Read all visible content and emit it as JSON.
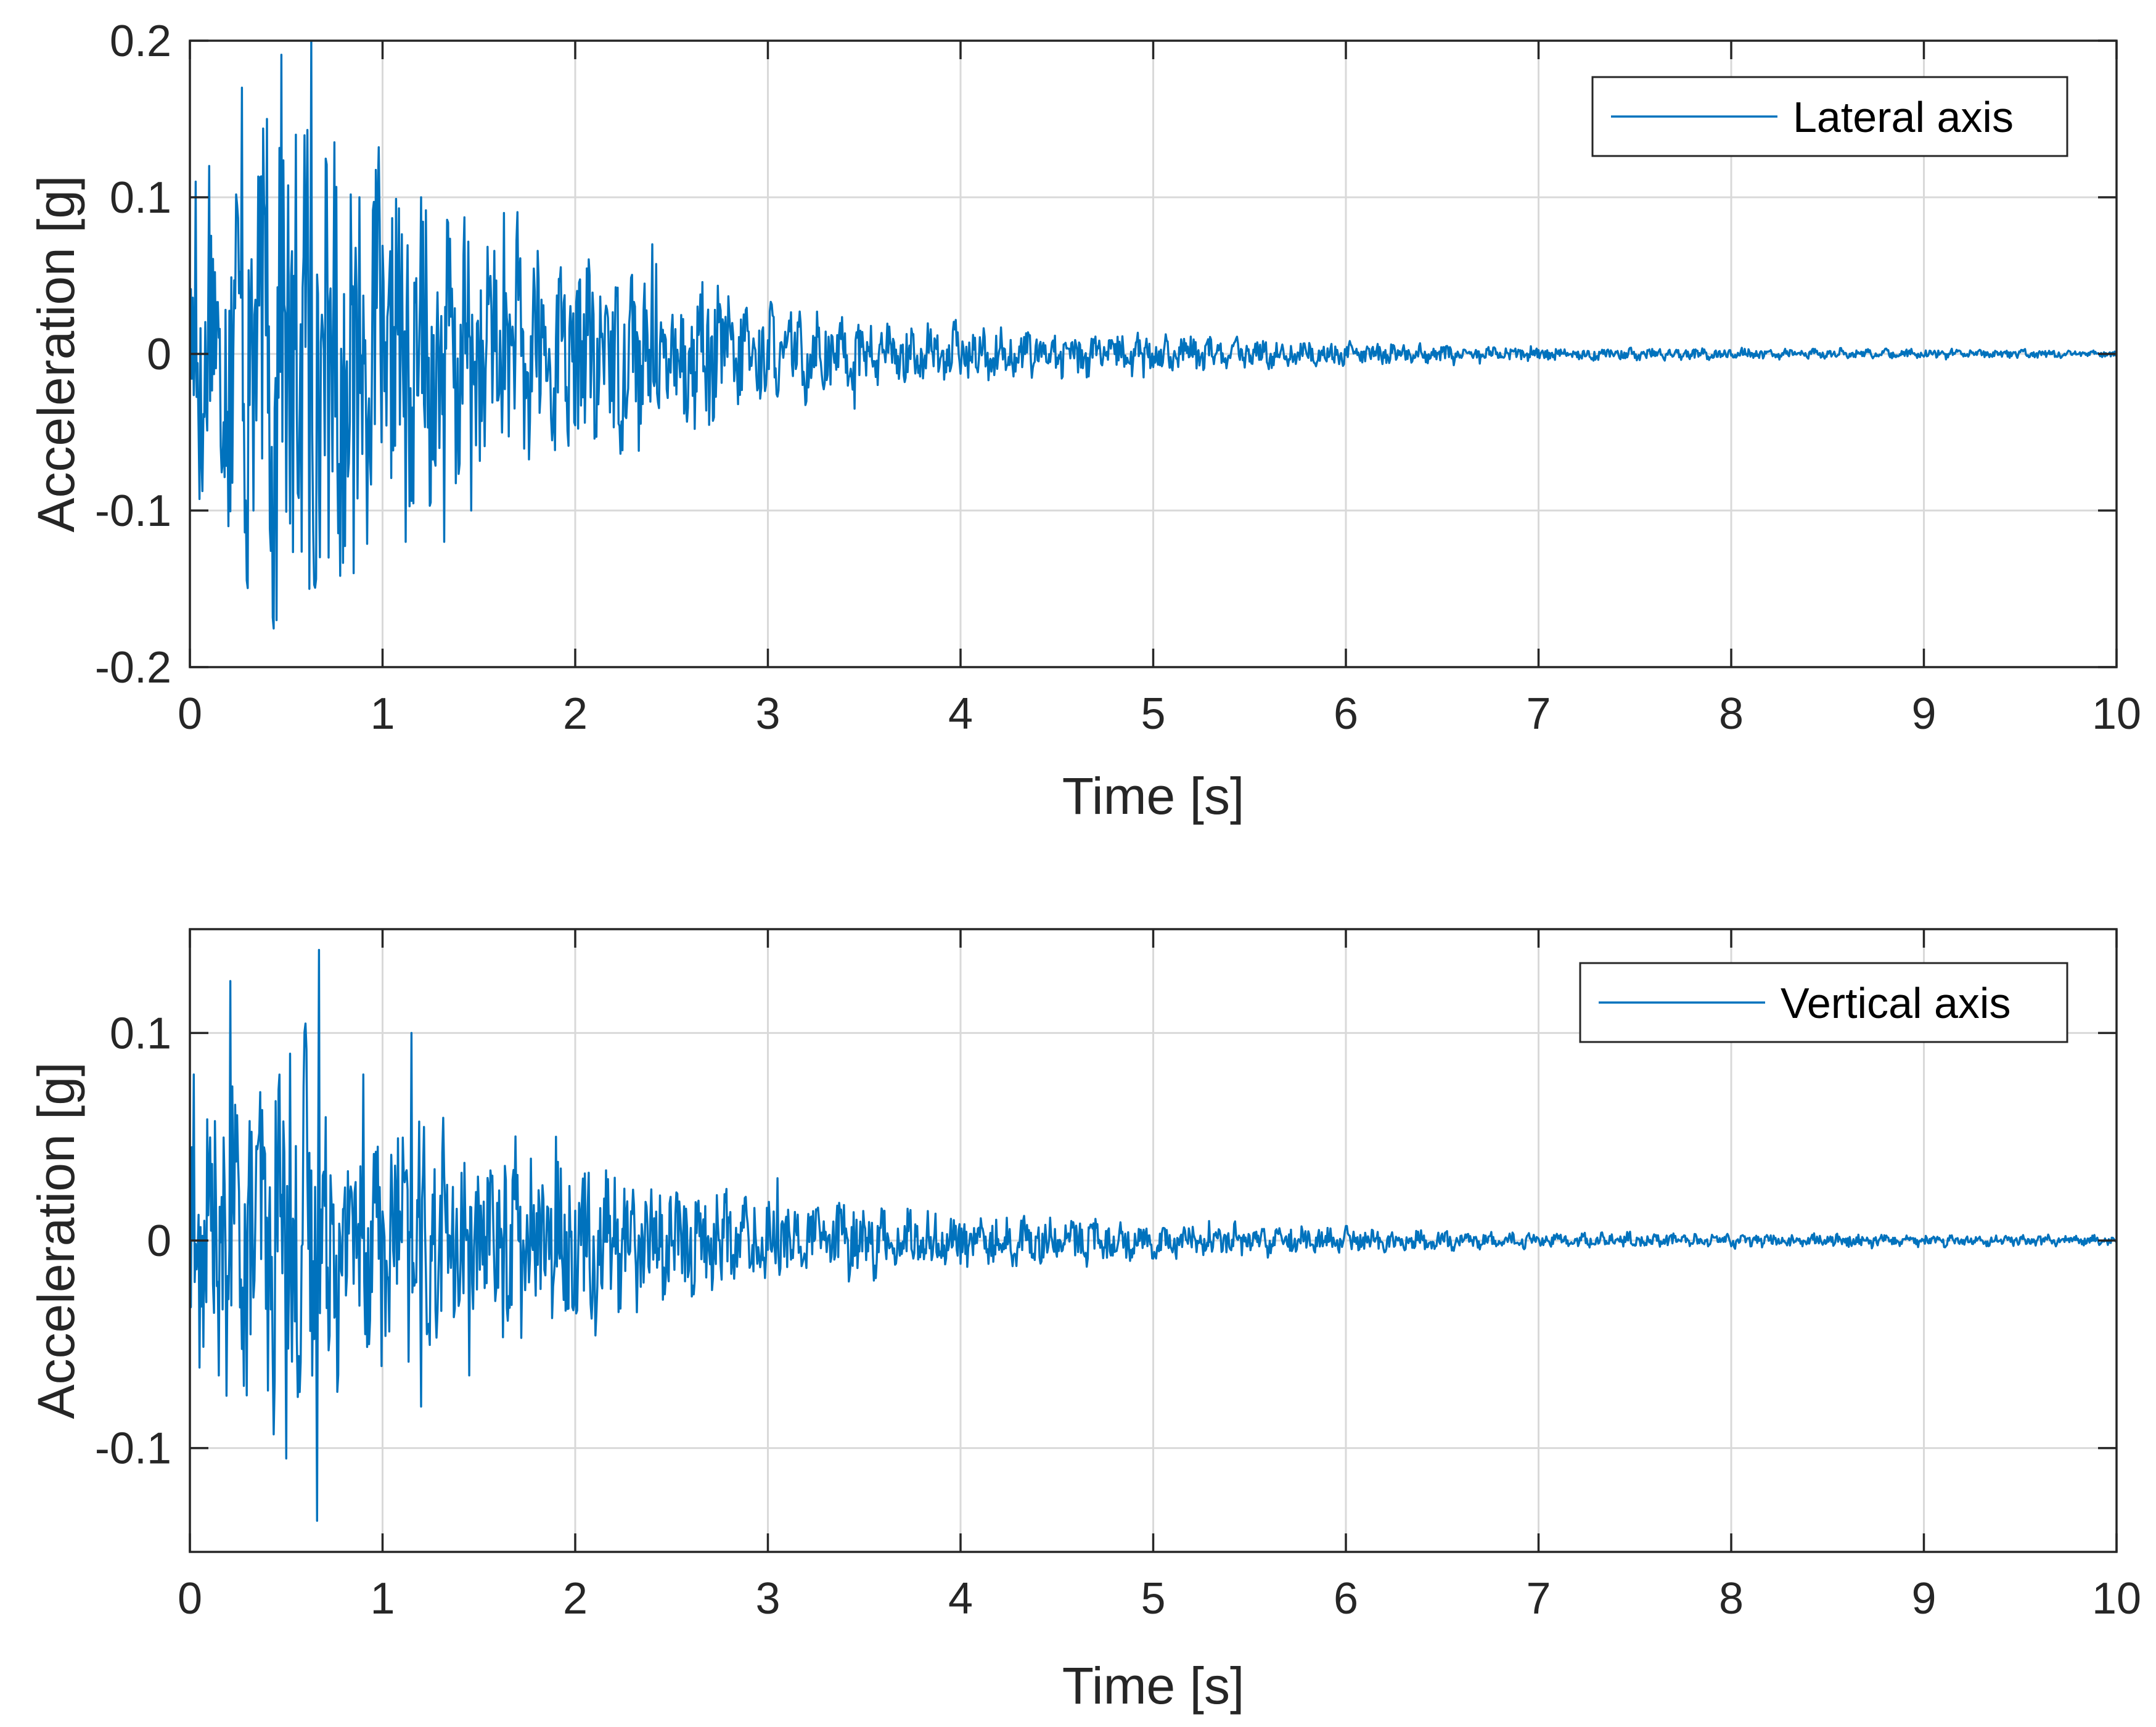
{
  "chart_data": [
    {
      "type": "line",
      "xlabel": "Time [s]",
      "ylabel": "Acceleration [g]",
      "xlim": [
        0,
        10
      ],
      "ylim": [
        -0.2,
        0.2
      ],
      "xticks": [
        0,
        1,
        2,
        3,
        4,
        5,
        6,
        7,
        8,
        9,
        10
      ],
      "yticks": [
        -0.2,
        -0.1,
        0,
        0.1,
        0.2
      ],
      "ytick_labels": [
        "-0.2",
        "-0.1",
        "0",
        "0.1",
        "0.2"
      ],
      "grid": true,
      "legend_position": "top-right",
      "color": "#0072bd",
      "series": [
        {
          "name": "Lateral axis",
          "envelope": [
            {
              "t": 0.0,
              "a": 0.08
            },
            {
              "t": 0.5,
              "a": 0.14
            },
            {
              "t": 1.0,
              "a": 0.1
            },
            {
              "t": 1.5,
              "a": 0.07
            },
            {
              "t": 2.0,
              "a": 0.055
            },
            {
              "t": 2.5,
              "a": 0.05
            },
            {
              "t": 3.0,
              "a": 0.025
            },
            {
              "t": 4.0,
              "a": 0.014
            },
            {
              "t": 5.0,
              "a": 0.01
            },
            {
              "t": 6.0,
              "a": 0.006
            },
            {
              "t": 7.0,
              "a": 0.004
            },
            {
              "t": 8.0,
              "a": 0.003
            },
            {
              "t": 10.0,
              "a": 0.002
            }
          ],
          "peaks": [
            {
              "t": 0.03,
              "v": 0.11
            },
            {
              "t": 0.1,
              "v": 0.12
            },
            {
              "t": 0.2,
              "v": -0.11
            },
            {
              "t": 0.27,
              "v": 0.17
            },
            {
              "t": 0.33,
              "v": -0.1
            },
            {
              "t": 0.4,
              "v": 0.15
            },
            {
              "t": 0.45,
              "v": -0.17
            },
            {
              "t": 0.55,
              "v": 0.14
            },
            {
              "t": 0.62,
              "v": -0.15
            },
            {
              "t": 0.63,
              "v": 0.2
            },
            {
              "t": 0.72,
              "v": -0.13
            },
            {
              "t": 0.85,
              "v": -0.14
            },
            {
              "t": 0.88,
              "v": 0.1
            },
            {
              "t": 1.12,
              "v": -0.12
            },
            {
              "t": 1.2,
              "v": 0.1
            },
            {
              "t": 1.32,
              "v": -0.12
            },
            {
              "t": 1.46,
              "v": -0.1
            },
            {
              "t": 1.63,
              "v": 0.09
            },
            {
              "t": 2.4,
              "v": 0.07
            },
            {
              "t": 3.45,
              "v": -0.035
            },
            {
              "t": 4.95,
              "v": -0.015
            }
          ]
        }
      ]
    },
    {
      "type": "line",
      "xlabel": "Time [s]",
      "ylabel": "Acceleration [g]",
      "xlim": [
        0,
        10
      ],
      "ylim": [
        -0.15,
        0.15
      ],
      "xticks": [
        0,
        1,
        2,
        3,
        4,
        5,
        6,
        7,
        8,
        9,
        10
      ],
      "yticks": [
        -0.1,
        0,
        0.1
      ],
      "ytick_labels": [
        "-0.1",
        "0",
        "0.1"
      ],
      "grid": true,
      "legend_position": "top-right",
      "color": "#0072bd",
      "series": [
        {
          "name": "Vertical axis",
          "envelope": [
            {
              "t": 0.0,
              "a": 0.05
            },
            {
              "t": 0.5,
              "a": 0.075
            },
            {
              "t": 1.0,
              "a": 0.05
            },
            {
              "t": 1.5,
              "a": 0.045
            },
            {
              "t": 2.0,
              "a": 0.035
            },
            {
              "t": 2.5,
              "a": 0.025
            },
            {
              "t": 3.0,
              "a": 0.018
            },
            {
              "t": 4.0,
              "a": 0.011
            },
            {
              "t": 5.0,
              "a": 0.008
            },
            {
              "t": 6.0,
              "a": 0.005
            },
            {
              "t": 7.0,
              "a": 0.003
            },
            {
              "t": 8.0,
              "a": 0.003
            },
            {
              "t": 10.0,
              "a": 0.002
            }
          ],
          "peaks": [
            {
              "t": 0.02,
              "v": 0.08
            },
            {
              "t": 0.15,
              "v": -0.065
            },
            {
              "t": 0.21,
              "v": 0.125
            },
            {
              "t": 0.28,
              "v": -0.07
            },
            {
              "t": 0.5,
              "v": -0.105
            },
            {
              "t": 0.52,
              "v": 0.09
            },
            {
              "t": 0.66,
              "v": -0.135
            },
            {
              "t": 0.67,
              "v": 0.14
            },
            {
              "t": 0.9,
              "v": 0.08
            },
            {
              "t": 1.15,
              "v": 0.1
            },
            {
              "t": 1.2,
              "v": -0.08
            },
            {
              "t": 1.45,
              "v": 0.06
            },
            {
              "t": 1.45,
              "v": -0.065
            },
            {
              "t": 1.9,
              "v": 0.05
            },
            {
              "t": 3.05,
              "v": 0.03
            }
          ]
        }
      ]
    }
  ]
}
